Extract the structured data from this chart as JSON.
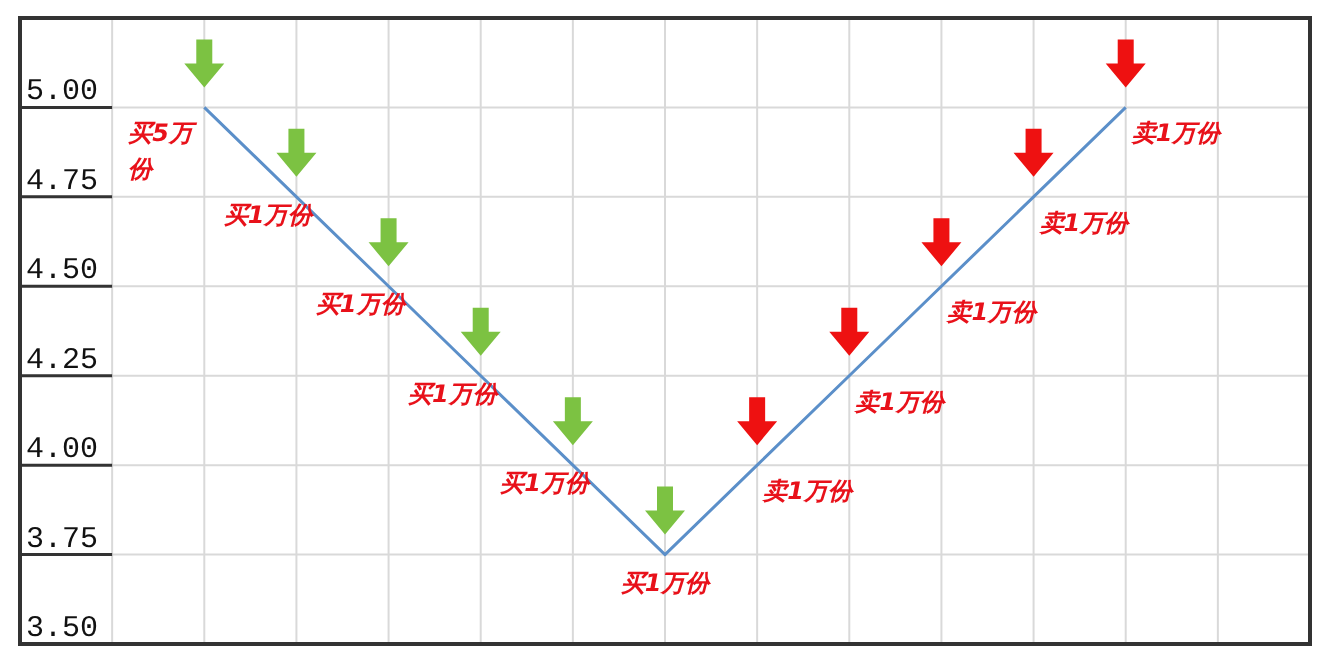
{
  "chart_data": {
    "type": "line",
    "categories": [
      null,
      null,
      null,
      null,
      null,
      null,
      null,
      null,
      null,
      null,
      null
    ],
    "series": [
      {
        "color": "#5b8fc9",
        "values": [
          5.0,
          4.75,
          4.5,
          4.25,
          4.0,
          3.75,
          4.0,
          4.25,
          4.5,
          4.75,
          5.0
        ]
      }
    ],
    "ylim": [
      3.5,
      5.25
    ],
    "yticks": [
      {
        "value": 3.5,
        "label": "3.50"
      },
      {
        "value": 3.75,
        "label": "3.75"
      },
      {
        "value": 4.0,
        "label": "4.00"
      },
      {
        "value": 4.25,
        "label": "4.25"
      },
      {
        "value": 4.5,
        "label": "4.50"
      },
      {
        "value": 4.75,
        "label": "4.75"
      },
      {
        "value": 5.0,
        "label": "5.00"
      }
    ],
    "grid": true,
    "marker": "none",
    "line_style": "solid",
    "annotations": [
      "买5万份",
      "买1万份",
      "买1万份",
      "买1万份",
      "买1万份",
      "买1万份",
      "卖1万份",
      "卖1万份",
      "卖1万份",
      "卖1万份",
      "卖1万份"
    ]
  }
}
